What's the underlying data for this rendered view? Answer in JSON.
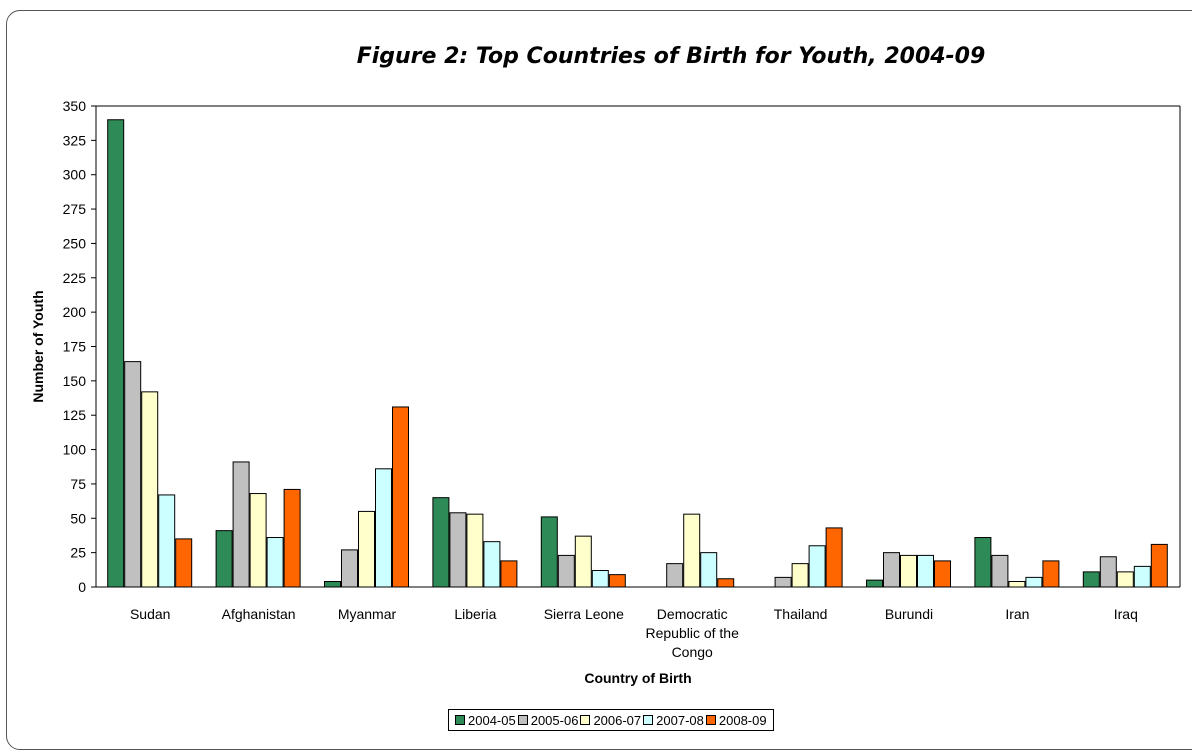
{
  "chart_data": {
    "type": "bar",
    "title": "Figure 2:  Top Countries of Birth for Youth, 2004-09",
    "xlabel": "Country of Birth",
    "ylabel": "Number of Youth",
    "ylim": [
      0,
      350
    ],
    "yticks": [
      "0",
      "25",
      "50",
      "75",
      "100",
      "125",
      "150",
      "175",
      "200",
      "225",
      "250",
      "275",
      "300",
      "325",
      "350"
    ],
    "categories": [
      [
        "Sudan"
      ],
      [
        "Afghanistan"
      ],
      [
        "Myanmar"
      ],
      [
        "Liberia"
      ],
      [
        "Sierra Leone"
      ],
      [
        "Democratic",
        "Republic of the",
        "Congo"
      ],
      [
        "Thailand"
      ],
      [
        "Burundi"
      ],
      [
        "Iran"
      ],
      [
        "Iraq"
      ]
    ],
    "series": [
      {
        "name": "2004-05",
        "color": "#2e8b57",
        "values": [
          340,
          41,
          4,
          65,
          51,
          0,
          0,
          5,
          36,
          11
        ]
      },
      {
        "name": "2005-06",
        "color": "#c0c0c0",
        "values": [
          164,
          91,
          27,
          54,
          23,
          17,
          7,
          25,
          23,
          22
        ]
      },
      {
        "name": "2006-07",
        "color": "#ffffcc",
        "values": [
          142,
          68,
          55,
          53,
          37,
          53,
          17,
          23,
          4,
          11
        ]
      },
      {
        "name": "2007-08",
        "color": "#ccffff",
        "values": [
          67,
          36,
          86,
          33,
          12,
          25,
          30,
          23,
          7,
          15
        ]
      },
      {
        "name": "2008-09",
        "color": "#ff6600",
        "values": [
          35,
          71,
          131,
          19,
          9,
          6,
          43,
          19,
          19,
          31
        ]
      }
    ],
    "grid": false,
    "legend_position": "bottom"
  }
}
